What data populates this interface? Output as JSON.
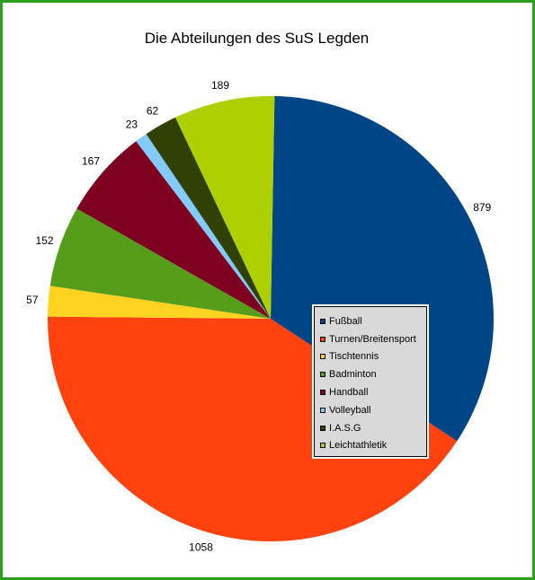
{
  "chart_data": {
    "type": "pie",
    "title": "Die Abteilungen des SuS Legden",
    "legend_position": "center-right",
    "slices": [
      {
        "label": "Fußball",
        "value": 879,
        "color": "#004586"
      },
      {
        "label": "Turnen/Breitensport",
        "value": 1058,
        "color": "#ff420e"
      },
      {
        "label": "Tischtennis",
        "value": 57,
        "color": "#ffd320"
      },
      {
        "label": "Badminton",
        "value": 152,
        "color": "#579d1c"
      },
      {
        "label": "Handball",
        "value": 167,
        "color": "#7e0021"
      },
      {
        "label": "Volleyball",
        "value": 23,
        "color": "#83caff"
      },
      {
        "label": "I.A.S.G",
        "value": 62,
        "color": "#314004"
      },
      {
        "label": "Leichtathletik",
        "value": 189,
        "color": "#aecf00"
      }
    ]
  },
  "frame_color": "#2e9e1e"
}
